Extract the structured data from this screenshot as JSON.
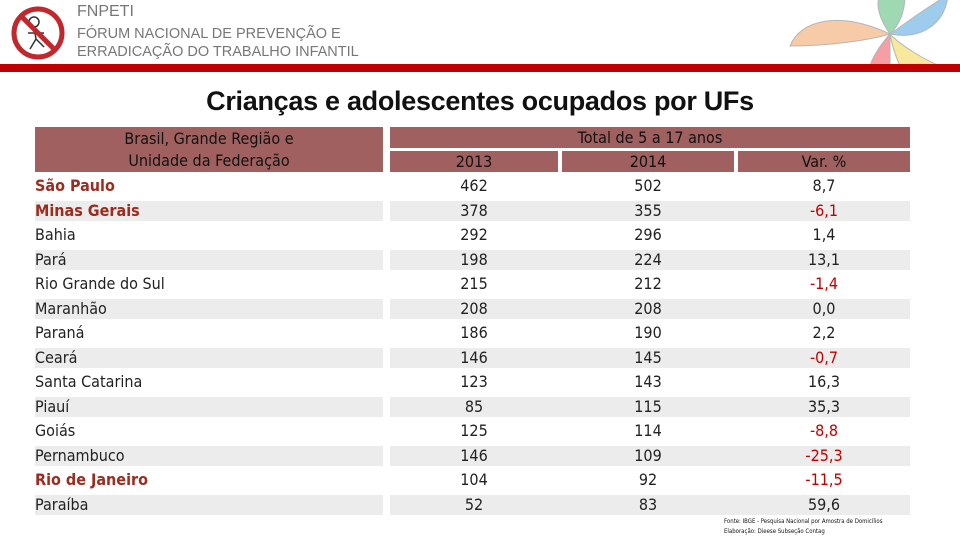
{
  "header": {
    "org_short": "FNPETI",
    "org_line1": "FÓRUM NACIONAL DE PREVENÇÃO E",
    "org_line2": "ERRADICAÇÃO DO TRABALHO INFANTIL",
    "accent": "#c00000"
  },
  "title": "Crianças e adolescentes ocupados por UFs",
  "table": {
    "col_group": "Brasil, Grande Região e",
    "col_group2": "Unidade da Federação",
    "span_header": "Total de 5 a 17 anos",
    "columns": [
      "2013",
      "2014",
      "Var. %"
    ],
    "rows": [
      {
        "name": "São Paulo",
        "y2013": "462",
        "y2014": "502",
        "var": "8,7",
        "highlight": true
      },
      {
        "name": "Minas Gerais",
        "y2013": "378",
        "y2014": "355",
        "var": "-6,1",
        "highlight": true
      },
      {
        "name": "Bahia",
        "y2013": "292",
        "y2014": "296",
        "var": "1,4"
      },
      {
        "name": "Pará",
        "y2013": "198",
        "y2014": "224",
        "var": "13,1"
      },
      {
        "name": "Rio Grande do Sul",
        "y2013": "215",
        "y2014": "212",
        "var": "-1,4"
      },
      {
        "name": "Maranhão",
        "y2013": "208",
        "y2014": "208",
        "var": "0,0"
      },
      {
        "name": "Paraná",
        "y2013": "186",
        "y2014": "190",
        "var": "2,2"
      },
      {
        "name": "Ceará",
        "y2013": "146",
        "y2014": "145",
        "var": "-0,7"
      },
      {
        "name": "Santa Catarina",
        "y2013": "123",
        "y2014": "143",
        "var": "16,3"
      },
      {
        "name": "Piauí",
        "y2013": "85",
        "y2014": "115",
        "var": "35,3"
      },
      {
        "name": "Goiás",
        "y2013": "125",
        "y2014": "114",
        "var": "-8,8"
      },
      {
        "name": "Pernambuco",
        "y2013": "146",
        "y2014": "109",
        "var": "-25,3"
      },
      {
        "name": "Rio de Janeiro",
        "y2013": "104",
        "y2014": "92",
        "var": "-11,5",
        "highlight": true
      },
      {
        "name": "Paraíba",
        "y2013": "52",
        "y2014": "83",
        "var": "59,6"
      }
    ]
  },
  "source": {
    "line1": "Fonte: IBGE - Pesquisa Nacional por Amostra de Domicílios",
    "line2": "Elaboração: Dieese Subseção Contag"
  }
}
